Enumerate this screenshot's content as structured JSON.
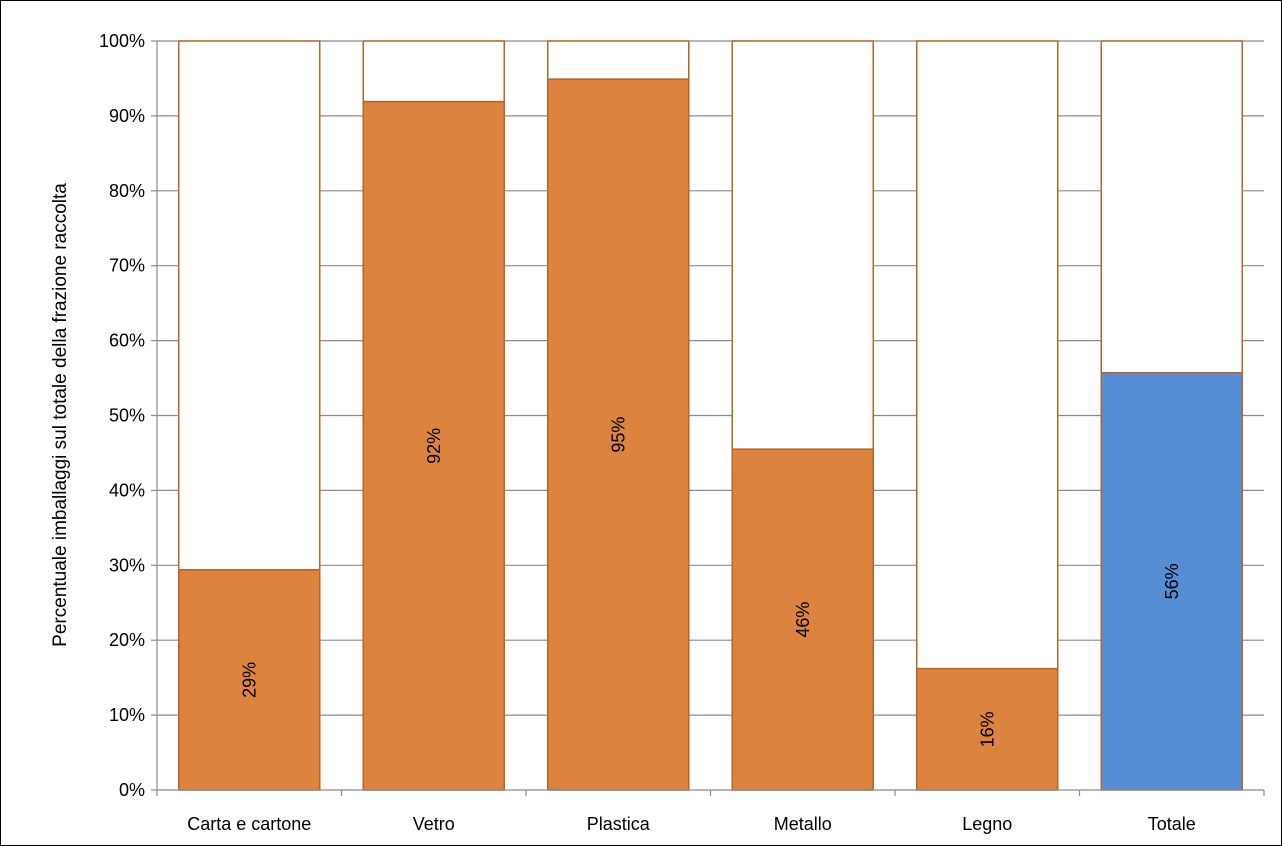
{
  "chart_data": {
    "type": "bar",
    "stacked_to": 100,
    "title": "",
    "xlabel": "",
    "ylabel": "Percentuale imballaggi sul totale della frazione raccolta",
    "ylim": [
      0,
      100
    ],
    "y_ticks": [
      "0%",
      "10%",
      "20%",
      "30%",
      "40%",
      "50%",
      "60%",
      "70%",
      "80%",
      "90%",
      "100%"
    ],
    "grid": true,
    "categories": [
      "Carta e cartone",
      "Vetro",
      "Plastica",
      "Metallo",
      "Legno",
      "Totale"
    ],
    "values": [
      29.4,
      91.9,
      94.9,
      45.5,
      16.2,
      55.7
    ],
    "data_labels": [
      "29%",
      "92%",
      "95%",
      "46%",
      "16%",
      "56%"
    ],
    "bar_colors": [
      "#dc843f",
      "#dc843f",
      "#dc843f",
      "#dc843f",
      "#dc843f",
      "#568dd5"
    ],
    "remainder_color": "#ffffff",
    "outline_color": "#b5652c",
    "grid_color": "#8c8c8c"
  }
}
